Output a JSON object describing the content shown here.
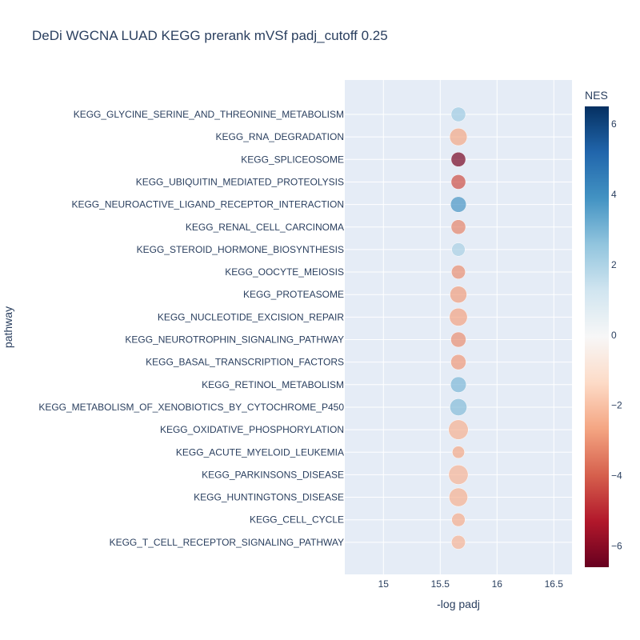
{
  "chart_data": {
    "type": "scatter",
    "title": "DeDi WGCNA LUAD KEGG prerank mVSf padj_cutoff 0.25",
    "xlabel": "-log padj",
    "ylabel": "pathway",
    "xlim": [
      14.66,
      16.66
    ],
    "x_ticks": [
      "15",
      "15.5",
      "16",
      "16.5"
    ],
    "x_tick_values": [
      15,
      15.5,
      16,
      16.5
    ],
    "grid": true,
    "colorbar": {
      "title": "NES",
      "range": [
        -6.6,
        6.5
      ],
      "tick_labels": [
        "6",
        "4",
        "2",
        "0",
        "−2",
        "−4",
        "−6"
      ],
      "tick_values": [
        6,
        4,
        2,
        0,
        -2,
        -4,
        -6
      ],
      "colorscale": [
        "#67001f",
        "#b2182b",
        "#d6604d",
        "#f4a582",
        "#fddbc7",
        "#f7f7f7",
        "#d1e5f0",
        "#92c5de",
        "#4393c3",
        "#2166ac",
        "#053061"
      ]
    },
    "categories": [
      "KEGG_GLYCINE_SERINE_AND_THREONINE_METABOLISM",
      "KEGG_RNA_DEGRADATION",
      "KEGG_SPLICEOSOME",
      "KEGG_UBIQUITIN_MEDIATED_PROTEOLYSIS",
      "KEGG_NEUROACTIVE_LIGAND_RECEPTOR_INTERACTION",
      "KEGG_RENAL_CELL_CARCINOMA",
      "KEGG_STEROID_HORMONE_BIOSYNTHESIS",
      "KEGG_OOCYTE_MEIOSIS",
      "KEGG_PROTEASOME",
      "KEGG_NUCLEOTIDE_EXCISION_REPAIR",
      "KEGG_NEUROTROPHIN_SIGNALING_PATHWAY",
      "KEGG_BASAL_TRANSCRIPTION_FACTORS",
      "KEGG_RETINOL_METABOLISM",
      "KEGG_METABOLISM_OF_XENOBIOTICS_BY_CYTOCHROME_P450",
      "KEGG_OXIDATIVE_PHOSPHORYLATION",
      "KEGG_ACUTE_MYELOID_LEUKEMIA",
      "KEGG_PARKINSONS_DISEASE",
      "KEGG_HUNTINGTONS_DISEASE",
      "KEGG_CELL_CYCLE",
      "KEGG_T_CELL_RECEPTOR_SIGNALING_PATHWAY"
    ],
    "points": [
      {
        "pathway": "KEGG_GLYCINE_SERINE_AND_THREONINE_METABOLISM",
        "x": 15.66,
        "nes": 2.3,
        "size": 0.65
      },
      {
        "pathway": "KEGG_RNA_DEGRADATION",
        "x": 15.66,
        "nes": -2.6,
        "size": 0.78
      },
      {
        "pathway": "KEGG_SPLICEOSOME",
        "x": 15.66,
        "nes": -6.3,
        "size": 0.65
      },
      {
        "pathway": "KEGG_UBIQUITIN_MEDIATED_PROTEOLYSIS",
        "x": 15.66,
        "nes": -4.3,
        "size": 0.65
      },
      {
        "pathway": "KEGG_NEUROACTIVE_LIGAND_RECEPTOR_INTERACTION",
        "x": 15.66,
        "nes": 3.8,
        "size": 0.7
      },
      {
        "pathway": "KEGG_RENAL_CELL_CARCINOMA",
        "x": 15.66,
        "nes": -3.3,
        "size": 0.65
      },
      {
        "pathway": "KEGG_STEROID_HORMONE_BIOSYNTHESIS",
        "x": 15.66,
        "nes": 2.1,
        "size": 0.6
      },
      {
        "pathway": "KEGG_OOCYTE_MEIOSIS",
        "x": 15.66,
        "nes": -3.1,
        "size": 0.62
      },
      {
        "pathway": "KEGG_PROTEASOME",
        "x": 15.66,
        "nes": -2.8,
        "size": 0.75
      },
      {
        "pathway": "KEGG_NUCLEOTIDE_EXCISION_REPAIR",
        "x": 15.66,
        "nes": -2.7,
        "size": 0.8
      },
      {
        "pathway": "KEGG_NEUROTROPHIN_SIGNALING_PATHWAY",
        "x": 15.66,
        "nes": -3.1,
        "size": 0.68
      },
      {
        "pathway": "KEGG_BASAL_TRANSCRIPTION_FACTORS",
        "x": 15.66,
        "nes": -2.9,
        "size": 0.68
      },
      {
        "pathway": "KEGG_RETINOL_METABOLISM",
        "x": 15.66,
        "nes": 2.9,
        "size": 0.7
      },
      {
        "pathway": "KEGG_METABOLISM_OF_XENOBIOTICS_BY_CYTOCHROME_P450",
        "x": 15.66,
        "nes": 2.8,
        "size": 0.76
      },
      {
        "pathway": "KEGG_OXIDATIVE_PHOSPHORYLATION",
        "x": 15.66,
        "nes": -2.4,
        "size": 0.88
      },
      {
        "pathway": "KEGG_ACUTE_MYELOID_LEUKEMIA",
        "x": 15.66,
        "nes": -2.6,
        "size": 0.55
      },
      {
        "pathway": "KEGG_PARKINSONS_DISEASE",
        "x": 15.66,
        "nes": -2.3,
        "size": 0.87
      },
      {
        "pathway": "KEGG_HUNTINGTONS_DISEASE",
        "x": 15.66,
        "nes": -2.4,
        "size": 0.83
      },
      {
        "pathway": "KEGG_CELL_CYCLE",
        "x": 15.66,
        "nes": -2.5,
        "size": 0.6
      },
      {
        "pathway": "KEGG_T_CELL_RECEPTOR_SIGNALING_PATHWAY",
        "x": 15.66,
        "nes": -2.3,
        "size": 0.62
      }
    ]
  }
}
